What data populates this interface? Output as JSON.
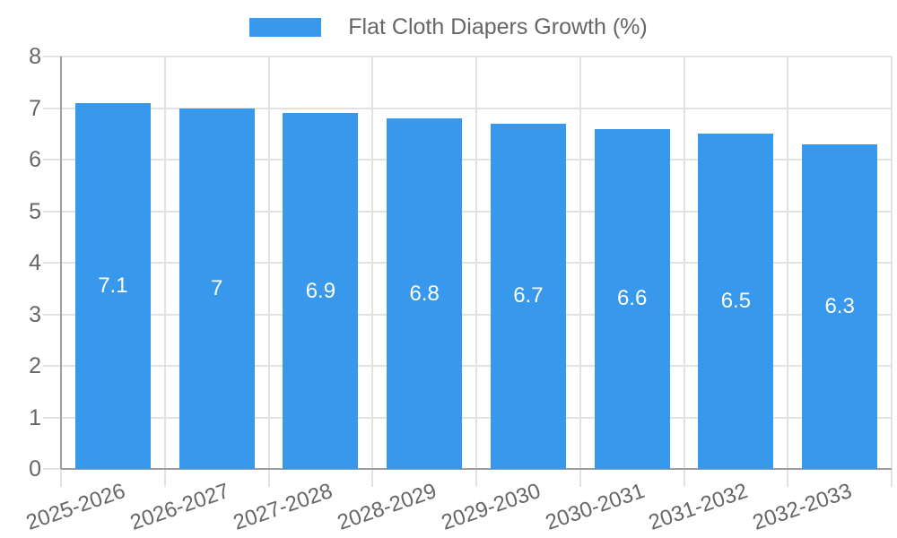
{
  "chart_data": {
    "type": "bar",
    "title": "Flat Cloth Diapers Growth (%)",
    "legend": {
      "position": "top",
      "label": "Flat Cloth Diapers Growth (%)"
    },
    "categories": [
      "2025-2026",
      "2026-2027",
      "2027-2028",
      "2028-2029",
      "2029-2030",
      "2030-2031",
      "2031-2032",
      "2032-2033"
    ],
    "values": [
      7.1,
      7,
      6.9,
      6.8,
      6.7,
      6.6,
      6.5,
      6.3
    ],
    "value_labels": [
      "7.1",
      "7",
      "6.9",
      "6.8",
      "6.7",
      "6.6",
      "6.5",
      "6.3"
    ],
    "xlabel": "",
    "ylabel": "",
    "ylim": [
      0,
      8
    ],
    "yticks": [
      "0",
      "1",
      "2",
      "3",
      "4",
      "5",
      "6",
      "7",
      "8"
    ],
    "grid": true,
    "x_tick_rotation_deg": -19,
    "colors": {
      "bar": "#3899EC",
      "grid": "#E2E2E2",
      "axis": "#9E9E9E",
      "tick_text": "#666666",
      "legend_text": "#666666",
      "value_label": "#FFFFFF",
      "background": "#FFFFFF"
    }
  }
}
